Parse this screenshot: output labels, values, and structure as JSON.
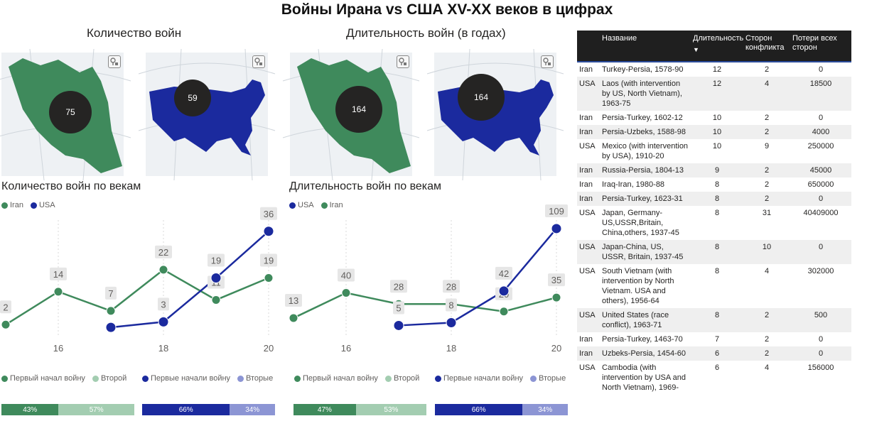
{
  "title": "Войны Ирана vs США XV-XX веков в цифрах",
  "sections": {
    "count_title": "Количество войн",
    "duration_title": "Длительность войн (в годах)"
  },
  "colors": {
    "iran": "#3f8a5c",
    "usa": "#1b2a9e",
    "iran_light": "#a3cdb1",
    "usa_light": "#8c95d4"
  },
  "maps": [
    {
      "country": "Iran",
      "value": "75"
    },
    {
      "country": "USA",
      "value": "59"
    },
    {
      "country": "Iran",
      "value": "164"
    },
    {
      "country": "USA",
      "value": "164"
    }
  ],
  "chart_data": [
    {
      "type": "line",
      "title": "Количество войн по векам",
      "legend": [
        "Iran",
        "USA"
      ],
      "x": [
        15,
        16,
        17,
        18,
        19,
        20
      ],
      "x_ticks": [
        "16",
        "18",
        "20"
      ],
      "series": [
        {
          "name": "Iran",
          "x": [
            15,
            16,
            17,
            18,
            19,
            20
          ],
          "values": [
            2,
            14,
            7,
            22,
            11,
            19
          ]
        },
        {
          "name": "USA",
          "x": [
            17,
            18,
            19,
            20
          ],
          "values": [
            1,
            3,
            19,
            36
          ]
        }
      ],
      "labels": {
        "Iran": [
          "2",
          "14",
          "7",
          "22",
          "11",
          "19"
        ],
        "USA": [
          "",
          "3",
          "19",
          "36"
        ]
      },
      "ylim": [
        0,
        38
      ]
    },
    {
      "type": "line",
      "title": "Длительность войн по векам",
      "legend": [
        "USA",
        "Iran"
      ],
      "x": [
        15,
        16,
        17,
        18,
        19,
        20
      ],
      "x_ticks": [
        "16",
        "18",
        "20"
      ],
      "series": [
        {
          "name": "Iran",
          "x": [
            15,
            16,
            17,
            18,
            19,
            20
          ],
          "values": [
            13,
            40,
            28,
            28,
            20,
            35
          ]
        },
        {
          "name": "USA",
          "x": [
            17,
            18,
            19,
            20
          ],
          "values": [
            5,
            8,
            42,
            109
          ]
        }
      ],
      "labels": {
        "Iran": [
          "13",
          "40",
          "28",
          "28",
          "20",
          "35"
        ],
        "USA": [
          "5",
          "8",
          "42",
          "109"
        ]
      },
      "ylim": [
        0,
        112
      ]
    }
  ],
  "splits": [
    {
      "legend": [
        "Первый начал войну",
        "Второй"
      ],
      "first": "43%",
      "first_value": 43,
      "second": "57%",
      "country": "iran"
    },
    {
      "legend": [
        "Первые начали войну",
        "Вторые"
      ],
      "first": "66%",
      "first_value": 66,
      "second": "34%",
      "country": "usa"
    },
    {
      "legend": [
        "Первый начал войну",
        "Второй"
      ],
      "first": "47%",
      "first_value": 47,
      "second": "53%",
      "country": "iran"
    },
    {
      "legend": [
        "Первые начали войну",
        "Вторые"
      ],
      "first": "66%",
      "first_value": 66,
      "second": "34%",
      "country": "usa"
    }
  ],
  "table": {
    "headers": [
      "",
      "Название",
      "Длительность",
      "Сторон конфликта",
      "Потери всех сторон"
    ],
    "rows": [
      [
        "Iran",
        "Turkey-Persia, 1578-90",
        "12",
        "2",
        "0"
      ],
      [
        "USA",
        "Laos (with intervention by US, North Vietnam), 1963-75",
        "12",
        "4",
        "18500"
      ],
      [
        "Iran",
        "Persia-Turkey, 1602-12",
        "10",
        "2",
        "0"
      ],
      [
        "Iran",
        "Persia-Uzbeks, 1588-98",
        "10",
        "2",
        "4000"
      ],
      [
        "USA",
        "Mexico (with intervention by USA), 1910-20",
        "10",
        "9",
        "250000"
      ],
      [
        "Iran",
        "Russia-Persia, 1804-13",
        "9",
        "2",
        "45000"
      ],
      [
        "Iran",
        "Iraq-Iran, 1980-88",
        "8",
        "2",
        "650000"
      ],
      [
        "Iran",
        "Persia-Turkey, 1623-31",
        "8",
        "2",
        "0"
      ],
      [
        "USA",
        "Japan, Germany-US,USSR,Britain, China,others, 1937-45",
        "8",
        "31",
        "40409000"
      ],
      [
        "USA",
        "Japan-China, US, USSR, Britain, 1937-45",
        "8",
        "10",
        "0"
      ],
      [
        "USA",
        "South Vietnam (with intervention by North Vietnam. USA and others), 1956-64",
        "8",
        "4",
        "302000"
      ],
      [
        "USA",
        "United States (race conflict), 1963-71",
        "8",
        "2",
        "500"
      ],
      [
        "Iran",
        "Persia-Turkey, 1463-70",
        "7",
        "2",
        "0"
      ],
      [
        "Iran",
        "Uzbeks-Persia, 1454-60",
        "6",
        "2",
        "0"
      ],
      [
        "USA",
        "Cambodia (with intervention by USA and North Vietnam), 1969-",
        "6",
        "4",
        "156000"
      ]
    ]
  }
}
